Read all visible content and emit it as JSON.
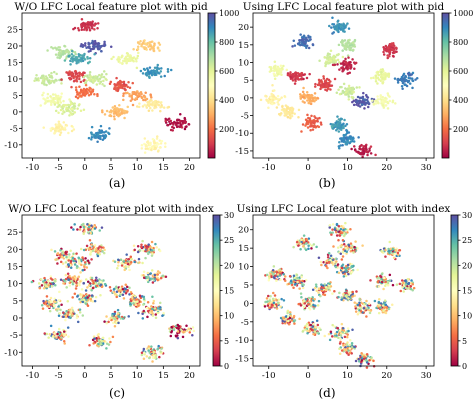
{
  "colormap": [
    "#9e0142",
    "#d53e4f",
    "#f46d43",
    "#fdae61",
    "#fee08b",
    "#ffffbf",
    "#e6f598",
    "#abdda4",
    "#66c2a5",
    "#3288bd",
    "#5e4fa2"
  ],
  "captions": [
    "(a)",
    "(b)",
    "(c)",
    "(d)"
  ],
  "chart_data": [
    {
      "type": "scatter",
      "title": "W/O LFC Local feature plot with pid",
      "colorbar": {
        "min": 0,
        "max": 1000,
        "ticks": [
          200,
          400,
          600,
          800,
          1000
        ]
      },
      "xlim": [
        -12,
        22
      ],
      "ylim": [
        -14,
        30
      ],
      "xticks": [
        -10,
        -5,
        0,
        5,
        10,
        15,
        20
      ],
      "yticks": [
        -10,
        -5,
        0,
        5,
        10,
        15,
        20,
        25
      ],
      "clusters": [
        {
          "x": 0.5,
          "y": 26,
          "v": 80
        },
        {
          "x": -4,
          "y": 18,
          "v": 680
        },
        {
          "x": 2,
          "y": 20,
          "v": 980
        },
        {
          "x": 12,
          "y": 20,
          "v": 360
        },
        {
          "x": -1,
          "y": 16,
          "v": 850
        },
        {
          "x": 8,
          "y": 16,
          "v": 580
        },
        {
          "x": -7,
          "y": 10,
          "v": 650
        },
        {
          "x": -2,
          "y": 11,
          "v": 120
        },
        {
          "x": 13,
          "y": 12,
          "v": 880
        },
        {
          "x": 2,
          "y": 10,
          "v": 640
        },
        {
          "x": 7,
          "y": 8,
          "v": 150
        },
        {
          "x": -6,
          "y": 4,
          "v": 550
        },
        {
          "x": 0,
          "y": 6,
          "v": 200
        },
        {
          "x": 10,
          "y": 5,
          "v": 280
        },
        {
          "x": -3,
          "y": 1,
          "v": 620
        },
        {
          "x": 6,
          "y": 0,
          "v": 330
        },
        {
          "x": 13,
          "y": 2,
          "v": 440
        },
        {
          "x": -5,
          "y": -5,
          "v": 460
        },
        {
          "x": 3,
          "y": -7,
          "v": 900
        },
        {
          "x": 13,
          "y": -10,
          "v": 470
        },
        {
          "x": 18,
          "y": -3.5,
          "v": 30
        }
      ]
    },
    {
      "type": "scatter",
      "title": "Using LFC Local feature plot with pid",
      "colorbar": {
        "min": 0,
        "max": 1000,
        "ticks": [
          200,
          400,
          600,
          800,
          1000
        ]
      },
      "xlim": [
        -14,
        32
      ],
      "ylim": [
        -17,
        24
      ],
      "xticks": [
        -10,
        0,
        10,
        20,
        30
      ],
      "yticks": [
        -15,
        -10,
        -5,
        0,
        5,
        10,
        15,
        20
      ],
      "clusters": [
        {
          "x": 8,
          "y": 20,
          "v": 880
        },
        {
          "x": -1,
          "y": 16,
          "v": 950
        },
        {
          "x": 10,
          "y": 15,
          "v": 680
        },
        {
          "x": 21,
          "y": 14,
          "v": 90
        },
        {
          "x": 6,
          "y": 11,
          "v": 630
        },
        {
          "x": 10,
          "y": 9,
          "v": 60
        },
        {
          "x": -8,
          "y": 8,
          "v": 560
        },
        {
          "x": -3,
          "y": 6,
          "v": 90
        },
        {
          "x": 4,
          "y": 4,
          "v": 120
        },
        {
          "x": 19,
          "y": 6,
          "v": 580
        },
        {
          "x": 25,
          "y": 5,
          "v": 920
        },
        {
          "x": 10,
          "y": 2,
          "v": 640
        },
        {
          "x": -9,
          "y": 0,
          "v": 460
        },
        {
          "x": 0,
          "y": 0,
          "v": 300
        },
        {
          "x": 14,
          "y": -1,
          "v": 980
        },
        {
          "x": 19,
          "y": -1,
          "v": 540
        },
        {
          "x": -5,
          "y": -4,
          "v": 430
        },
        {
          "x": 1,
          "y": -7,
          "v": 170
        },
        {
          "x": 8,
          "y": -8,
          "v": 870
        },
        {
          "x": 10,
          "y": -12,
          "v": 900
        },
        {
          "x": 14,
          "y": -15,
          "v": 50
        }
      ]
    },
    {
      "type": "scatter",
      "title": "W/O LFC Local feature plot with index",
      "colorbar": {
        "min": 0,
        "max": 30,
        "ticks": [
          0,
          5,
          10,
          15,
          20,
          25,
          30
        ]
      },
      "xlim": [
        -12,
        22
      ],
      "ylim": [
        -14,
        30
      ],
      "xticks": [
        -10,
        -5,
        0,
        5,
        10,
        15,
        20
      ],
      "yticks": [
        -10,
        -5,
        0,
        5,
        10,
        15,
        20,
        25
      ],
      "clusters": [
        {
          "x": 0.5,
          "y": 26,
          "v": -1
        },
        {
          "x": -4,
          "y": 18,
          "v": -1
        },
        {
          "x": 2,
          "y": 20,
          "v": -1
        },
        {
          "x": 12,
          "y": 20,
          "v": -1
        },
        {
          "x": -1,
          "y": 16,
          "v": -1
        },
        {
          "x": 8,
          "y": 16,
          "v": -1
        },
        {
          "x": -7,
          "y": 10,
          "v": -1
        },
        {
          "x": -2,
          "y": 11,
          "v": -1
        },
        {
          "x": 13,
          "y": 12,
          "v": -1
        },
        {
          "x": 2,
          "y": 10,
          "v": -1
        },
        {
          "x": 7,
          "y": 8,
          "v": -1
        },
        {
          "x": -6,
          "y": 4,
          "v": -1
        },
        {
          "x": 0,
          "y": 6,
          "v": -1
        },
        {
          "x": 10,
          "y": 5,
          "v": -1
        },
        {
          "x": -3,
          "y": 1,
          "v": -1
        },
        {
          "x": 6,
          "y": 0,
          "v": -1
        },
        {
          "x": 13,
          "y": 2,
          "v": -1
        },
        {
          "x": -5,
          "y": -5,
          "v": -1
        },
        {
          "x": 3,
          "y": -7,
          "v": -1
        },
        {
          "x": 13,
          "y": -10,
          "v": -1
        },
        {
          "x": 18,
          "y": -3.5,
          "v": 3
        }
      ]
    },
    {
      "type": "scatter",
      "title": "Using LFC Local feature plot with index",
      "colorbar": {
        "min": 0,
        "max": 30,
        "ticks": [
          0,
          5,
          10,
          15,
          20,
          25,
          30
        ]
      },
      "xlim": [
        -14,
        32
      ],
      "ylim": [
        -17,
        24
      ],
      "xticks": [
        -10,
        0,
        10,
        20,
        30
      ],
      "yticks": [
        -15,
        -10,
        -5,
        0,
        5,
        10,
        15,
        20
      ],
      "clusters": [
        {
          "x": 8,
          "y": 20,
          "v": -1
        },
        {
          "x": -1,
          "y": 16,
          "v": -1
        },
        {
          "x": 10,
          "y": 15,
          "v": -1
        },
        {
          "x": 21,
          "y": 14,
          "v": -1
        },
        {
          "x": 6,
          "y": 11,
          "v": -1
        },
        {
          "x": 10,
          "y": 9,
          "v": -1
        },
        {
          "x": -8,
          "y": 8,
          "v": -1
        },
        {
          "x": -3,
          "y": 6,
          "v": -1
        },
        {
          "x": 4,
          "y": 4,
          "v": -1
        },
        {
          "x": 19,
          "y": 6,
          "v": -1
        },
        {
          "x": 25,
          "y": 5,
          "v": -1
        },
        {
          "x": 10,
          "y": 2,
          "v": -1
        },
        {
          "x": -9,
          "y": 0,
          "v": -1
        },
        {
          "x": 0,
          "y": 0,
          "v": -1
        },
        {
          "x": 14,
          "y": -1,
          "v": -1
        },
        {
          "x": 19,
          "y": -1,
          "v": -1
        },
        {
          "x": -5,
          "y": -4,
          "v": -1
        },
        {
          "x": 1,
          "y": -7,
          "v": -1
        },
        {
          "x": 8,
          "y": -8,
          "v": -1
        },
        {
          "x": 10,
          "y": -12,
          "v": -1
        },
        {
          "x": 14,
          "y": -15,
          "v": -1
        }
      ]
    }
  ]
}
